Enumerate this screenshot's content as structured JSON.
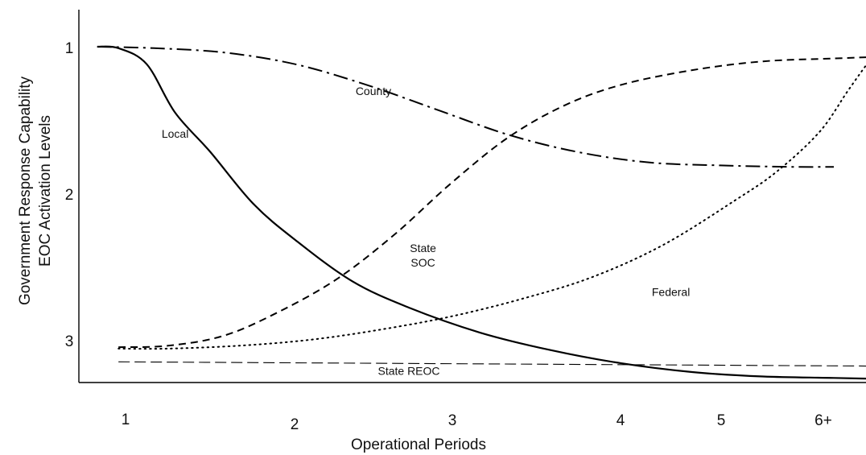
{
  "chart_data": {
    "type": "line",
    "title": "",
    "xlabel": "Operational Periods",
    "ylabel_lines": [
      "Government Response Capability",
      "EOC Activation Levels"
    ],
    "x_ticks": [
      "1",
      "2",
      "3",
      "4",
      "5",
      "6+"
    ],
    "y_ticks": [
      "1",
      "2",
      "3"
    ],
    "ylim": [
      1,
      3
    ],
    "grid": false,
    "legend": "none",
    "series": [
      {
        "name": "Local",
        "style": "solid",
        "x": [
          0.8,
          0.95,
          1.15,
          1.35,
          1.6,
          1.9,
          2.2,
          2.6,
          3.0,
          3.5,
          4.0,
          4.5,
          5.0,
          5.5,
          6.0,
          6.5
        ],
        "y": [
          1.0,
          1.01,
          1.12,
          1.45,
          1.72,
          2.07,
          2.32,
          2.6,
          2.78,
          2.95,
          3.07,
          3.16,
          3.22,
          3.25,
          3.26,
          3.27
        ]
      },
      {
        "name": "County",
        "style": "dash-dot",
        "x": [
          0.8,
          1.2,
          1.7,
          2.2,
          2.7,
          3.2,
          3.7,
          4.2,
          4.7,
          5.2,
          5.7,
          6.0
        ],
        "y": [
          1.0,
          1.01,
          1.04,
          1.12,
          1.26,
          1.43,
          1.6,
          1.72,
          1.79,
          1.81,
          1.82,
          1.82
        ]
      },
      {
        "name": "State SOC",
        "style": "dashed",
        "x": [
          0.95,
          1.3,
          1.7,
          2.1,
          2.5,
          2.9,
          3.3,
          3.7,
          4.1,
          4.5,
          5.0,
          5.5,
          6.0,
          6.3
        ],
        "y": [
          3.05,
          3.04,
          2.97,
          2.8,
          2.58,
          2.28,
          1.93,
          1.62,
          1.4,
          1.26,
          1.16,
          1.1,
          1.08,
          1.07
        ]
      },
      {
        "name": "Federal",
        "style": "dotted",
        "x": [
          0.95,
          1.3,
          1.8,
          2.3,
          2.8,
          3.3,
          3.8,
          4.3,
          4.8,
          5.3,
          5.6,
          5.9,
          6.1,
          6.25,
          6.3
        ],
        "y": [
          3.06,
          3.06,
          3.04,
          3.0,
          2.93,
          2.84,
          2.72,
          2.57,
          2.35,
          2.05,
          1.85,
          1.58,
          1.3,
          1.1,
          1.07
        ]
      },
      {
        "name": "State REOC",
        "style": "thin-dashed",
        "x": [
          0.95,
          6.5
        ],
        "y": [
          3.15,
          3.18
        ]
      }
    ],
    "annotations": [
      {
        "text": "County",
        "x": 2.75,
        "y": 1.33
      },
      {
        "text": "Local",
        "x": 1.35,
        "y": 1.62
      },
      {
        "text": "State",
        "x": 3.1,
        "y": 2.4
      },
      {
        "text": "SOC",
        "x": 3.1,
        "y": 2.5
      },
      {
        "text": "Federal",
        "x": 4.85,
        "y": 2.7
      },
      {
        "text": "State REOC",
        "x": 3.0,
        "y": 3.24
      }
    ]
  }
}
